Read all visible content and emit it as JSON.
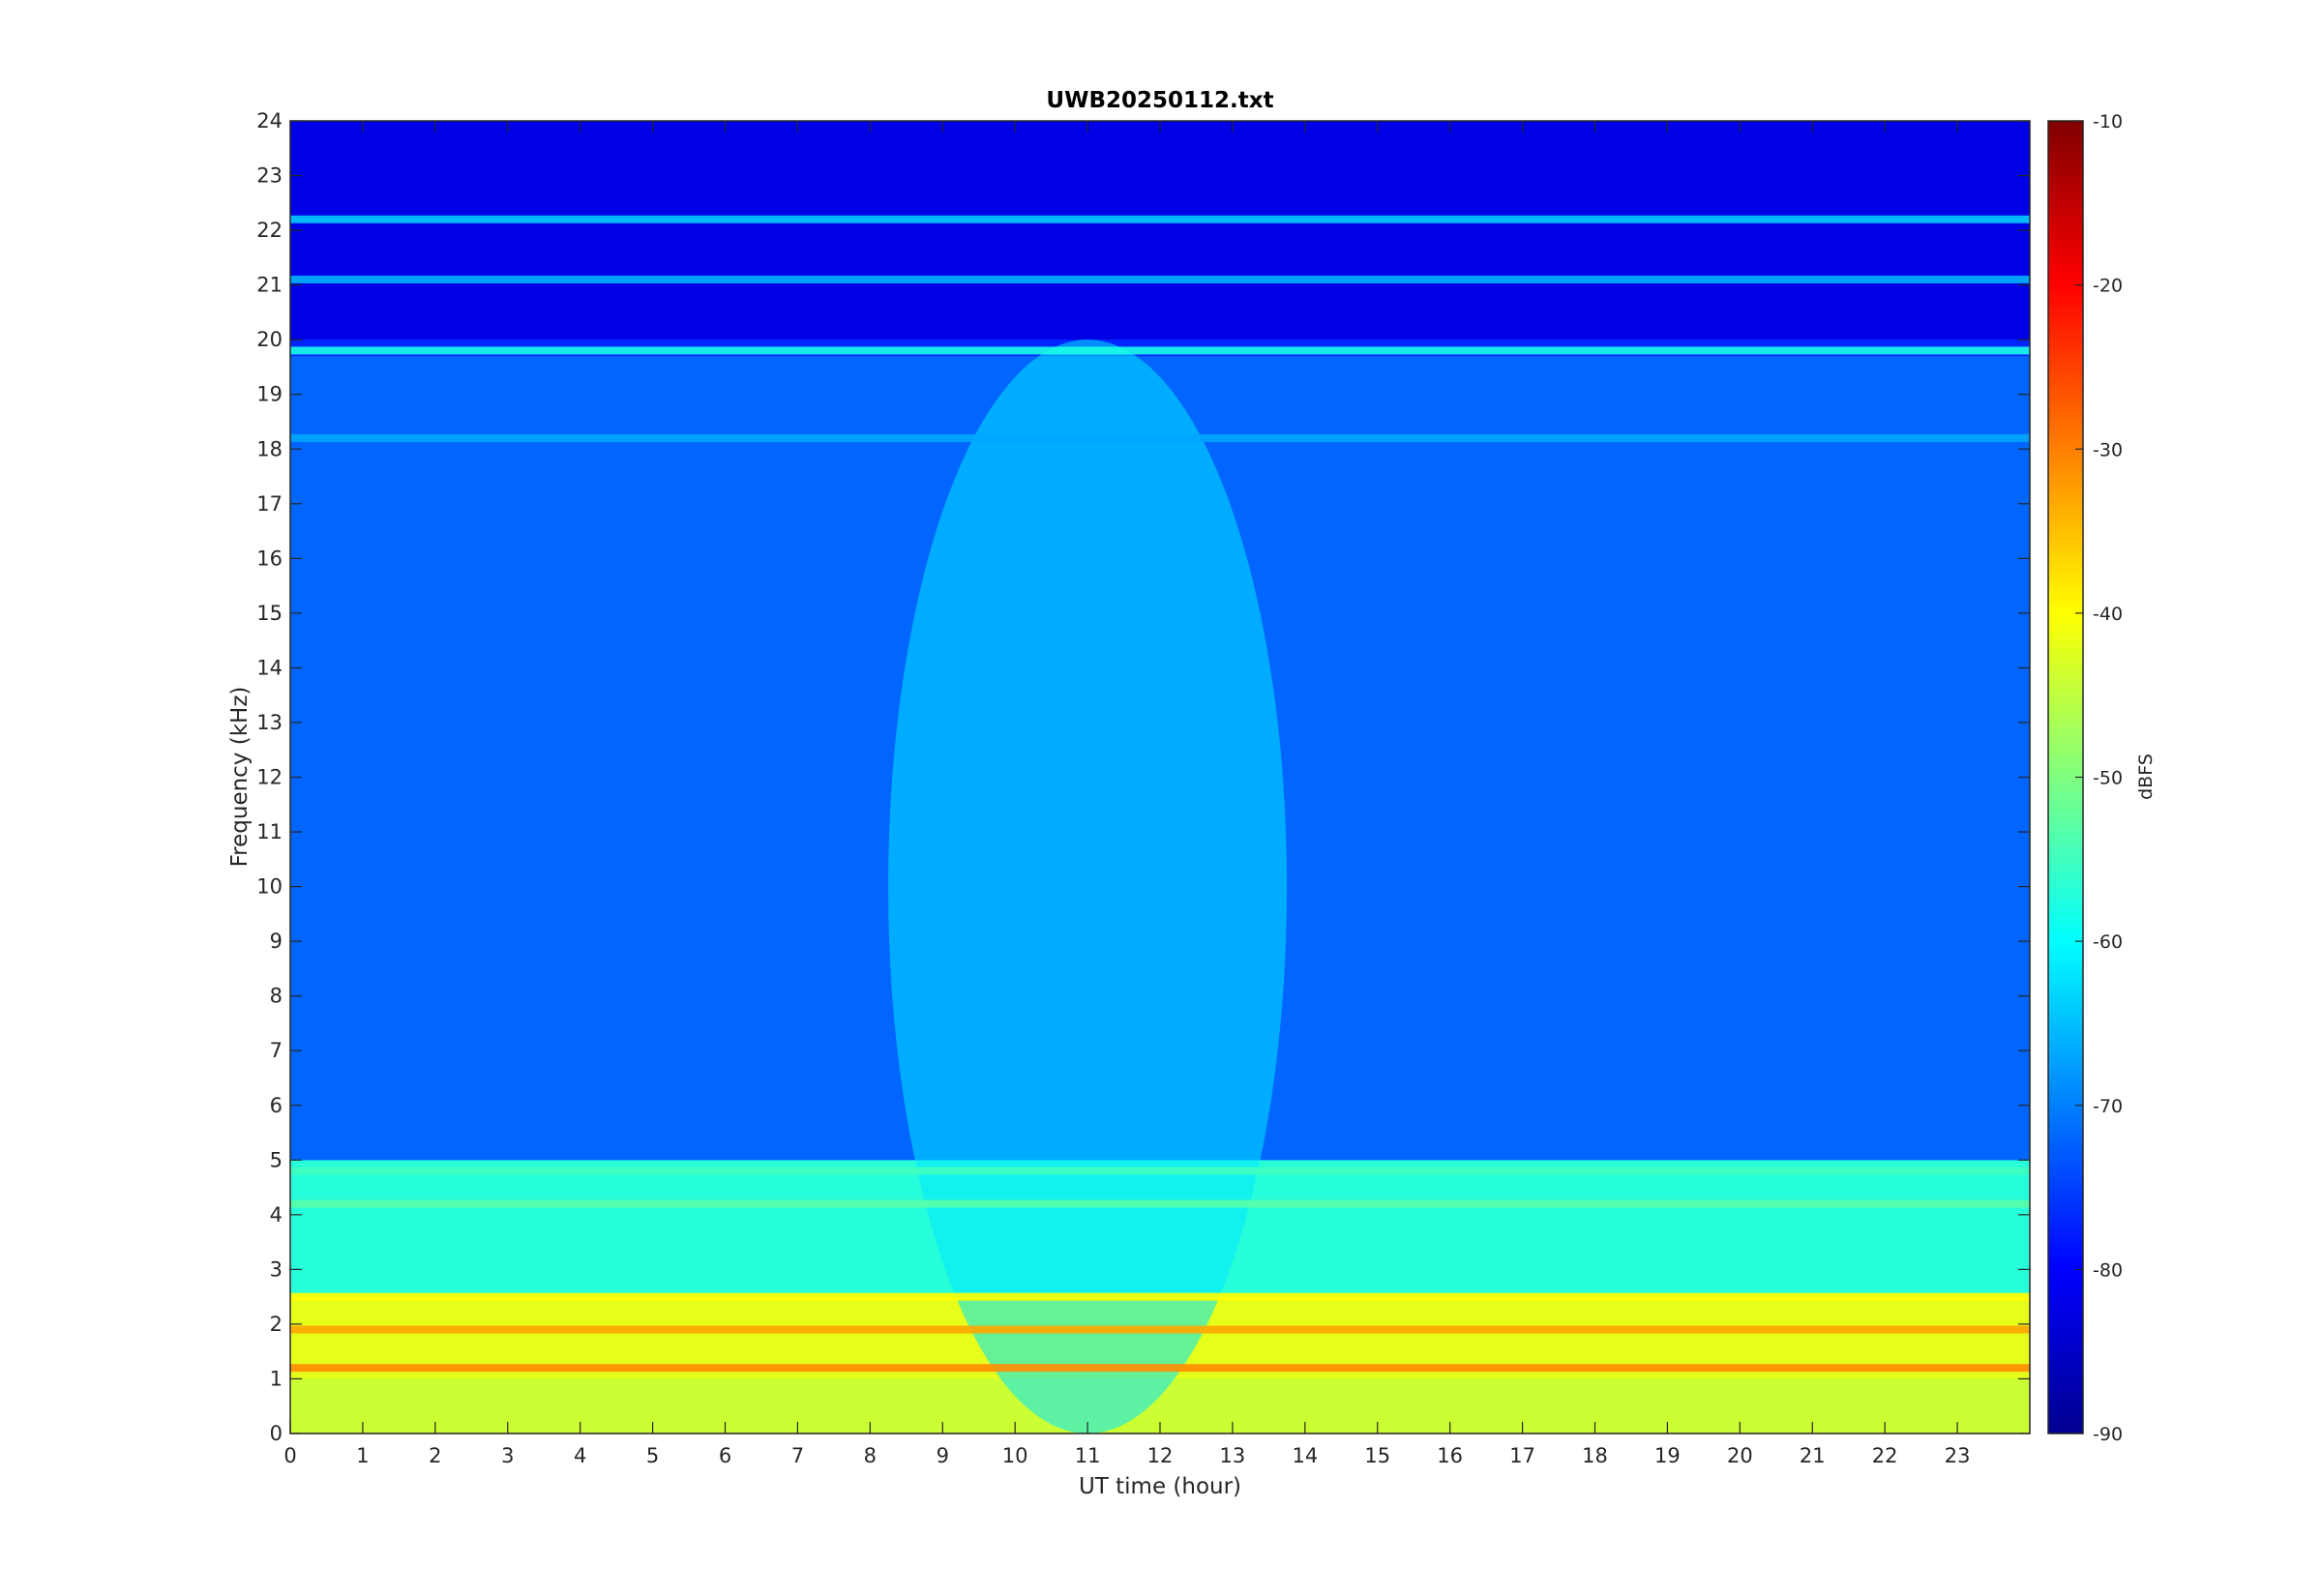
{
  "chart_data": {
    "type": "heatmap",
    "title": "UWB20250112.txt",
    "xlabel": "UT time (hour)",
    "ylabel": "Frequency (kHz)",
    "xlim": [
      0,
      24
    ],
    "ylim": [
      0,
      24
    ],
    "x_ticks": [
      "0",
      "1",
      "2",
      "3",
      "4",
      "5",
      "6",
      "7",
      "8",
      "9",
      "10",
      "11",
      "12",
      "13",
      "14",
      "15",
      "16",
      "17",
      "18",
      "19",
      "20",
      "21",
      "22",
      "23"
    ],
    "y_ticks": [
      "0",
      "1",
      "2",
      "3",
      "4",
      "5",
      "6",
      "7",
      "8",
      "9",
      "10",
      "11",
      "12",
      "13",
      "14",
      "15",
      "16",
      "17",
      "18",
      "19",
      "20",
      "21",
      "22",
      "23",
      "24"
    ],
    "colorbar": {
      "label": "dBFS",
      "range": [
        -90,
        -10
      ],
      "ticks": [
        "-10",
        "-20",
        "-30",
        "-40",
        "-50",
        "-60",
        "-70",
        "-80",
        "-90"
      ],
      "colormap": "jet"
    },
    "background_levels": [
      {
        "freq_range_khz": [
          0,
          1
        ],
        "dBFS": -44
      },
      {
        "freq_range_khz": [
          1,
          2.5
        ],
        "dBFS": -42
      },
      {
        "freq_range_khz": [
          2.5,
          5
        ],
        "dBFS": -57
      },
      {
        "freq_range_khz": [
          5,
          19.7
        ],
        "dBFS": -72
      },
      {
        "freq_range_khz": [
          20,
          24
        ],
        "dBFS": -82
      }
    ],
    "persistent_lines": [
      {
        "freq_khz": 19.8,
        "dBFS": -58
      },
      {
        "freq_khz": 22.2,
        "dBFS": -64
      },
      {
        "freq_khz": 21.1,
        "dBFS": -66
      },
      {
        "freq_khz": 18.2,
        "dBFS": -67
      },
      {
        "freq_khz": 4.8,
        "dBFS": -55
      },
      {
        "freq_khz": 4.2,
        "dBFS": -53
      },
      {
        "freq_khz": 2.5,
        "dBFS": -40
      },
      {
        "freq_khz": 1.9,
        "dBFS": -33
      },
      {
        "freq_khz": 1.2,
        "dBFS": -31
      }
    ],
    "daytime_enhancement": {
      "time_range_hour": [
        9,
        14.5
      ],
      "peak_hour": 11,
      "dBFS": -62
    }
  }
}
